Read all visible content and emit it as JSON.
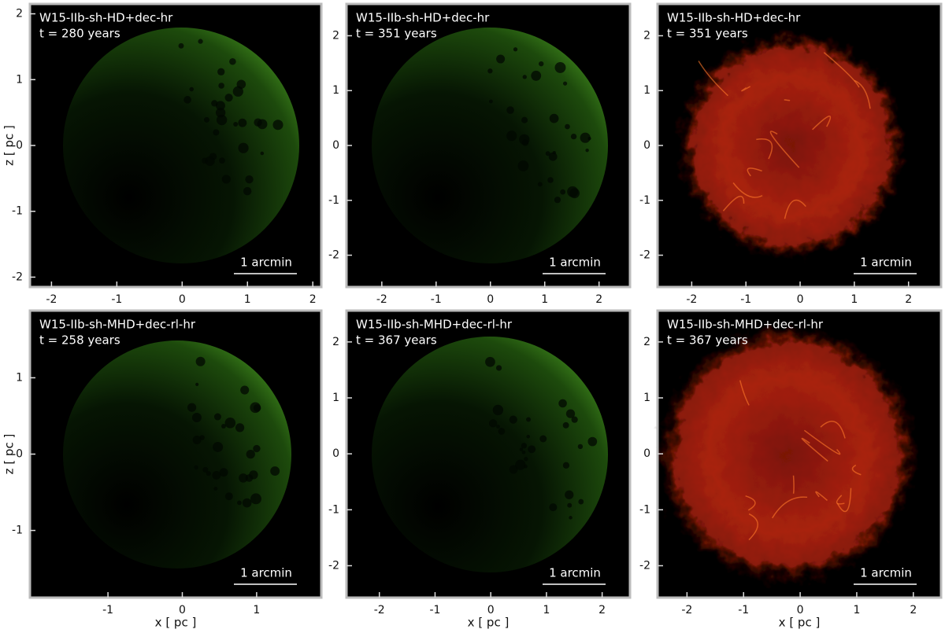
{
  "chart_data": [
    {
      "type": "image",
      "colormap": "green",
      "annotations": [
        "W15-IIb-sh-HD+dec-hr",
        "t = 280 years",
        "1 arcmin"
      ],
      "ylabel": "z [ pc ]",
      "xlim": [
        -2.33,
        2.13
      ],
      "ylim": [
        -2.15,
        2.15
      ],
      "xticks": [
        -2,
        -1,
        0,
        1,
        2
      ],
      "yticks": [
        -2,
        -1,
        0,
        1,
        2
      ]
    },
    {
      "type": "image",
      "colormap": "green",
      "annotations": [
        "W15-IIb-sh-HD+dec-hr",
        "t = 351 years",
        "1 arcmin"
      ],
      "xlim": [
        -2.65,
        2.57
      ],
      "ylim": [
        -2.58,
        2.58
      ],
      "xticks": [
        -2,
        -1,
        0,
        1,
        2
      ],
      "yticks": [
        -2,
        -1,
        0,
        1,
        2
      ]
    },
    {
      "type": "image",
      "colormap": "red",
      "annotations": [
        "W15-IIb-sh-HD+dec-hr",
        "t = 351 years",
        "1 arcmin"
      ],
      "xlim": [
        -2.63,
        2.6
      ],
      "ylim": [
        -2.58,
        2.58
      ],
      "xticks": [
        -2,
        -1,
        0,
        1,
        2
      ],
      "yticks": [
        -2,
        -1,
        0,
        1,
        2
      ]
    },
    {
      "type": "image",
      "colormap": "green",
      "annotations": [
        "W15-IIb-sh-MHD+dec-rl-hr",
        "t = 258 years",
        "1 arcmin"
      ],
      "ylabel": "z [ pc ]",
      "xlabel": "x [ pc ]",
      "xlim": [
        -2.05,
        1.87
      ],
      "ylim": [
        -1.88,
        1.88
      ],
      "xticks": [
        -1,
        0,
        1
      ],
      "yticks": [
        -1,
        0,
        1
      ]
    },
    {
      "type": "image",
      "colormap": "green",
      "annotations": [
        "W15-IIb-sh-MHD+dec-rl-hr",
        "t = 367 years",
        "1 arcmin"
      ],
      "xlabel": "x [ pc ]",
      "xlim": [
        -2.59,
        2.5
      ],
      "ylim": [
        -2.57,
        2.56
      ],
      "xticks": [
        -2,
        -1,
        0,
        1,
        2
      ],
      "yticks": [
        -2,
        -1,
        0,
        1,
        2
      ]
    },
    {
      "type": "image",
      "colormap": "red",
      "annotations": [
        "W15-IIb-sh-MHD+dec-rl-hr",
        "t = 367 years",
        "1 arcmin"
      ],
      "xlabel": "x [ pc ]",
      "xlim": [
        -2.52,
        2.49
      ],
      "ylim": [
        -2.57,
        2.56
      ],
      "xticks": [
        -2,
        -1,
        0,
        1,
        2
      ],
      "yticks": [
        -2,
        -1,
        0,
        1,
        2
      ]
    }
  ]
}
